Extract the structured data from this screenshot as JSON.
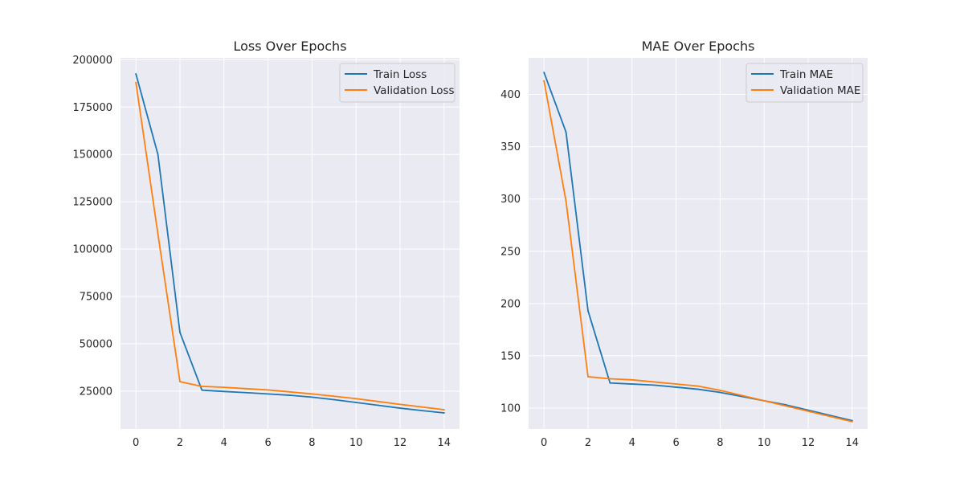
{
  "colors": {
    "train": "#1f77b4",
    "validation": "#ff7f0e"
  },
  "chart_data": [
    {
      "type": "line",
      "title": "Loss Over Epochs",
      "xlabel": "",
      "ylabel": "",
      "xlim": [
        -0.7,
        14.7
      ],
      "ylim": [
        5000,
        201000
      ],
      "xticks": [
        0,
        2,
        4,
        6,
        8,
        10,
        12,
        14
      ],
      "yticks": [
        25000,
        50000,
        75000,
        100000,
        125000,
        150000,
        175000,
        200000
      ],
      "grid": true,
      "legend_position": "top-right",
      "x": [
        0,
        1,
        2,
        3,
        4,
        5,
        6,
        7,
        8,
        9,
        10,
        11,
        12,
        13,
        14
      ],
      "series": [
        {
          "name": "Train Loss",
          "color": "#1f77b4",
          "values": [
            192500,
            150000,
            56000,
            25500,
            24800,
            24200,
            23500,
            22800,
            21800,
            20500,
            19000,
            17500,
            16000,
            14700,
            13500
          ]
        },
        {
          "name": "Validation Loss",
          "color": "#ff7f0e",
          "values": [
            188000,
            108000,
            30000,
            27500,
            27000,
            26300,
            25600,
            24600,
            23500,
            22300,
            21000,
            19500,
            18000,
            16600,
            15200
          ]
        }
      ]
    },
    {
      "type": "line",
      "title": "MAE Over Epochs",
      "xlabel": "",
      "ylabel": "",
      "xlim": [
        -0.7,
        14.7
      ],
      "ylim": [
        80,
        435
      ],
      "xticks": [
        0,
        2,
        4,
        6,
        8,
        10,
        12,
        14
      ],
      "yticks": [
        100,
        150,
        200,
        250,
        300,
        350,
        400
      ],
      "grid": true,
      "legend_position": "top-right",
      "x": [
        0,
        1,
        2,
        3,
        4,
        5,
        6,
        7,
        8,
        9,
        10,
        11,
        12,
        13,
        14
      ],
      "series": [
        {
          "name": "Train MAE",
          "color": "#1f77b4",
          "values": [
            421,
            364,
            193,
            124,
            123,
            122,
            120,
            118,
            115,
            111,
            107,
            103,
            98,
            93,
            88
          ]
        },
        {
          "name": "Validation MAE",
          "color": "#ff7f0e",
          "values": [
            413,
            298,
            130,
            128,
            127,
            125,
            123,
            121,
            117,
            112,
            107,
            102,
            97,
            92,
            87
          ]
        }
      ]
    }
  ]
}
